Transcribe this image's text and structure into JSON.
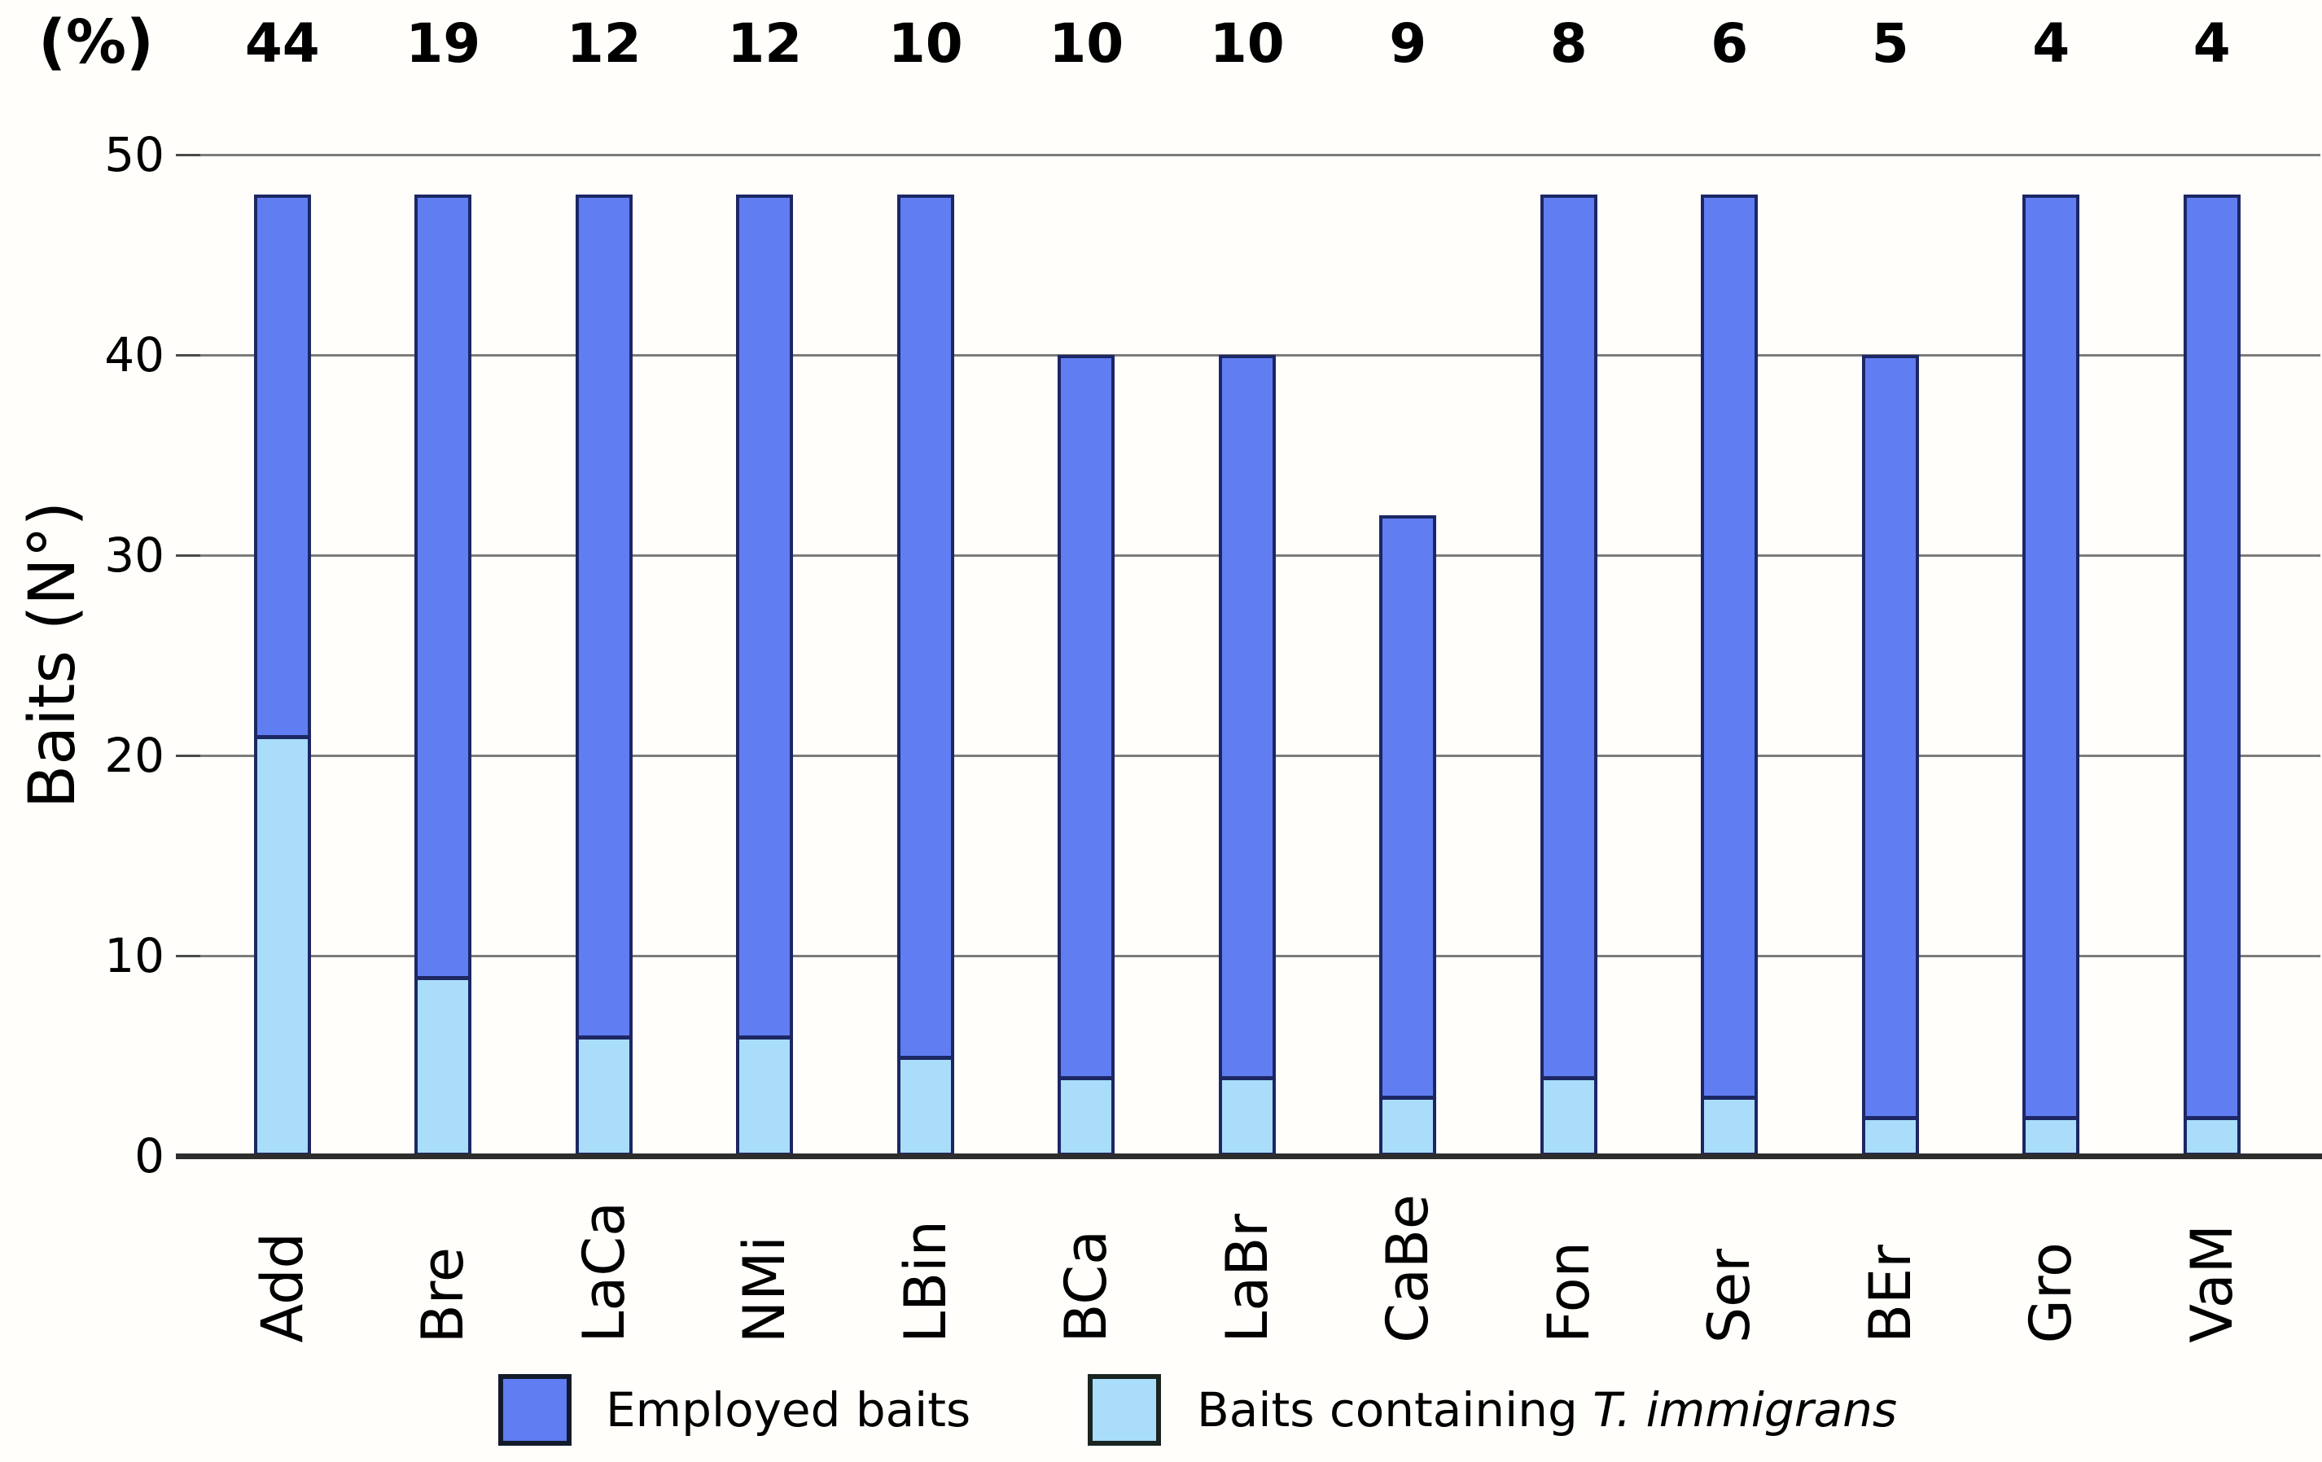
{
  "percent_header": {
    "unit_label": "(%)"
  },
  "y_axis": {
    "title": "Baits (N°)"
  },
  "legend": {
    "employed": {
      "label": "Employed baits",
      "color": "#617df2"
    },
    "containing": {
      "label_prefix": "Baits containing ",
      "label_species_italic": "T. immigrans",
      "color": "#a9ddfa"
    }
  },
  "colors": {
    "employed_fill": "#617df2",
    "containing_fill": "#a9ddfa",
    "bar_border": "#1c2763",
    "gridline": "#7c7c7c",
    "axis_line": "#2d2d2d",
    "text": "#000000",
    "background": "#fffefb"
  },
  "chart_data": {
    "type": "bar",
    "stacked_overlay": true,
    "title": "",
    "xlabel": "",
    "ylabel": "Baits (N°)",
    "ylim": [
      0,
      50
    ],
    "yticks": [
      0,
      10,
      20,
      30,
      40,
      50
    ],
    "grid": "horizontal",
    "legend_position": "bottom",
    "categories": [
      "Add",
      "Bre",
      "LaCa",
      "NMi",
      "LBin",
      "BCa",
      "LaBr",
      "CaBe",
      "Fon",
      "Ser",
      "BEr",
      "Gro",
      "VaM"
    ],
    "series": [
      {
        "name": "Employed baits",
        "values": [
          48,
          48,
          48,
          48,
          48,
          40,
          40,
          32,
          48,
          48,
          40,
          48,
          48
        ]
      },
      {
        "name": "Baits containing T. immigrans",
        "values": [
          21,
          9,
          6,
          6,
          5,
          4,
          4,
          3,
          4,
          3,
          2,
          2,
          2
        ]
      }
    ],
    "percent_annotations": {
      "label": "(%)",
      "values": [
        44,
        19,
        12,
        12,
        10,
        10,
        10,
        9,
        8,
        6,
        5,
        4,
        4
      ]
    }
  }
}
